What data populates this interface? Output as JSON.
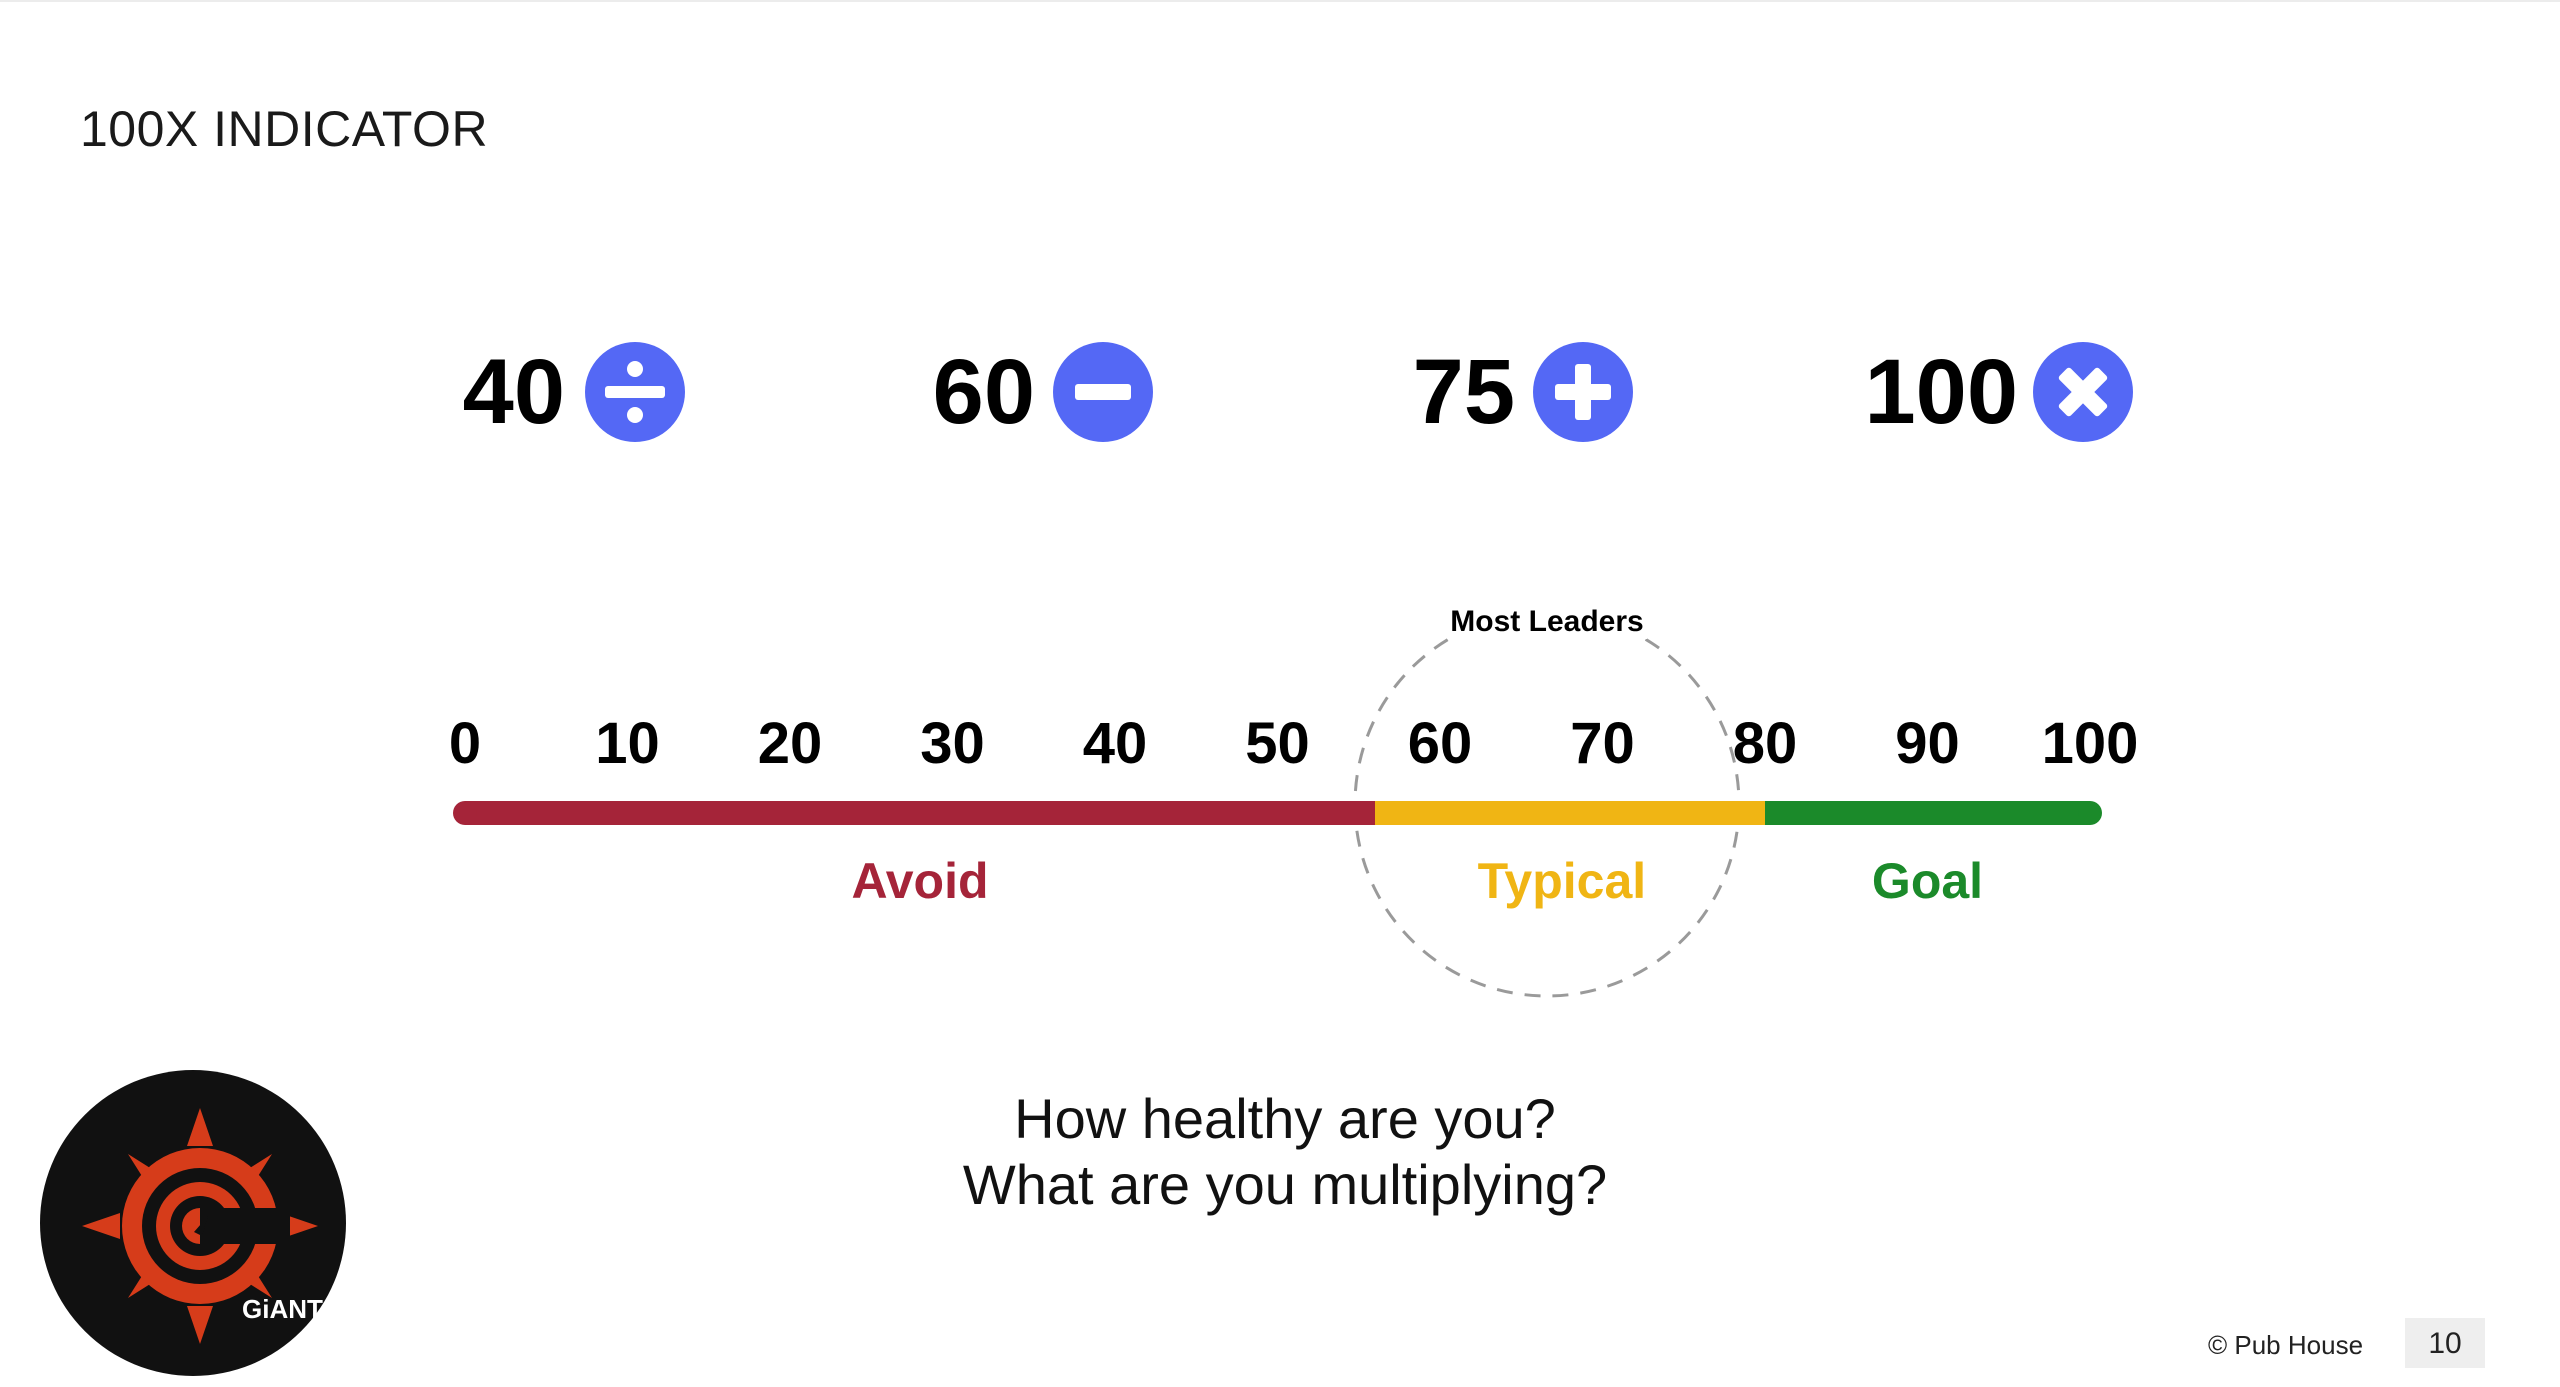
{
  "slide": {
    "title": "100X INDICATOR",
    "page_number": "10",
    "copyright": "© Pub House"
  },
  "stats": [
    {
      "value": "40",
      "operator": "divide",
      "icon": "divide-icon"
    },
    {
      "value": "60",
      "operator": "subtract",
      "icon": "minus-icon"
    },
    {
      "value": "75",
      "operator": "add",
      "icon": "plus-icon"
    },
    {
      "value": "100",
      "operator": "multiply",
      "icon": "times-icon"
    }
  ],
  "scale": {
    "ticks": [
      "0",
      "10",
      "20",
      "30",
      "40",
      "50",
      "60",
      "70",
      "80",
      "90",
      "100"
    ],
    "min": 0,
    "max": 100,
    "zones": [
      {
        "label": "Avoid",
        "from": 0,
        "to": 56,
        "color": "#a52439"
      },
      {
        "label": "Typical",
        "from": 56,
        "to": 80,
        "color": "#f0b514"
      },
      {
        "label": "Goal",
        "from": 80,
        "to": 100,
        "color": "#1b8a2a"
      }
    ],
    "highlight": {
      "label": "Most Leaders",
      "center": 67
    }
  },
  "questions": {
    "line1": "How healthy are you?",
    "line2": "What are you multiplying?"
  },
  "logo": {
    "name": "giant-logo",
    "text": "GiANT"
  },
  "colors": {
    "accent": "#5468f5"
  }
}
